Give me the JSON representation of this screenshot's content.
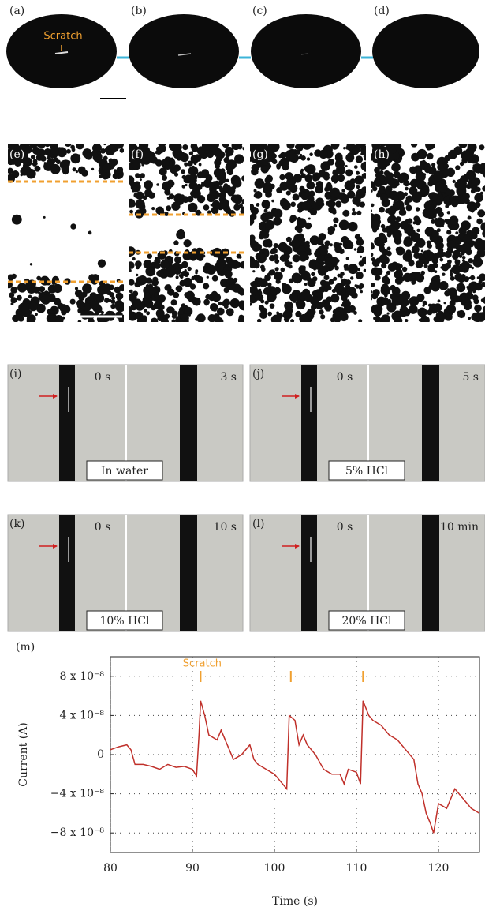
{
  "photos": {
    "labels": [
      "(a)",
      "(b)",
      "(c)",
      "(d)",
      "(e)",
      "(f)",
      "(g)",
      "(h)",
      "(i)",
      "(j)",
      "(k)",
      "(l)"
    ],
    "scratch_label": "Scratch",
    "panels": [
      {
        "left_time": "0 s",
        "right_time": "3 s",
        "condition": "In water"
      },
      {
        "left_time": "0 s",
        "right_time": "5 s",
        "condition": "5% HCl"
      },
      {
        "left_time": "0 s",
        "right_time": "10 s",
        "condition": "10% HCl"
      },
      {
        "left_time": "0 s",
        "right_time": "10 min",
        "condition": "20% HCl"
      }
    ]
  },
  "chart_data": {
    "type": "line",
    "label": "(m)",
    "x_label": "Time (s)",
    "y_label": "Current (A)",
    "color": "#c0302a",
    "x": [
      80,
      81,
      82,
      82.5,
      83,
      84,
      85,
      86,
      87,
      88,
      89,
      90,
      90.5,
      90.8,
      91,
      91.5,
      92,
      93,
      93.5,
      94,
      95,
      96,
      97,
      97.5,
      98,
      99,
      100,
      101,
      101.5,
      101.8,
      102.5,
      103,
      103.5,
      104,
      105,
      106,
      107,
      108,
      108.5,
      109,
      110,
      110.5,
      110.8,
      111.5,
      112,
      113,
      114,
      115,
      116,
      117,
      117.5,
      118,
      118.5,
      119,
      119.4,
      120,
      121,
      122,
      123,
      124,
      125
    ],
    "values": [
      5e-09,
      8e-09,
      1e-08,
      5e-09,
      -1e-08,
      -1e-08,
      -1.2e-08,
      -1.5e-08,
      -1e-08,
      -1.3e-08,
      -1.2e-08,
      -1.5e-08,
      -2.2e-08,
      2e-08,
      5.5e-08,
      4e-08,
      2e-08,
      1.5e-08,
      2.5e-08,
      1.5e-08,
      -5e-09,
      0,
      1e-08,
      -5e-09,
      -1e-08,
      -1.5e-08,
      -2e-08,
      -3e-08,
      -3.5e-08,
      4e-08,
      3.5e-08,
      1e-08,
      2e-08,
      1e-08,
      0,
      -1.5e-08,
      -2e-08,
      -2e-08,
      -3e-08,
      -1.5e-08,
      -1.8e-08,
      -3e-08,
      5.5e-08,
      4e-08,
      3.5e-08,
      3e-08,
      2e-08,
      1.5e-08,
      5e-09,
      -5e-09,
      -3e-08,
      -4e-08,
      -6e-08,
      -7e-08,
      -8e-08,
      -5e-08,
      -5.5e-08,
      -3.5e-08,
      -4.5e-08,
      -5.5e-08,
      -6e-08
    ],
    "xlim": [
      80,
      125
    ],
    "xticks": [
      80,
      90,
      100,
      110,
      120
    ],
    "ylim": [
      -1e-07,
      1e-07
    ],
    "yticks": [
      {
        "value": -8e-08,
        "label": "−8 x 10⁻⁸"
      },
      {
        "value": -4e-08,
        "label": "−4 x 10⁻⁸"
      },
      0,
      {
        "value": 4e-08,
        "label": "4 x 10⁻⁸"
      },
      {
        "value": 8e-08,
        "label": "8 x 10⁻⁸"
      }
    ],
    "grid": true,
    "annotation": {
      "text": "Scratch",
      "x": [
        91,
        102,
        110.8
      ],
      "color": "#f0a030"
    }
  }
}
